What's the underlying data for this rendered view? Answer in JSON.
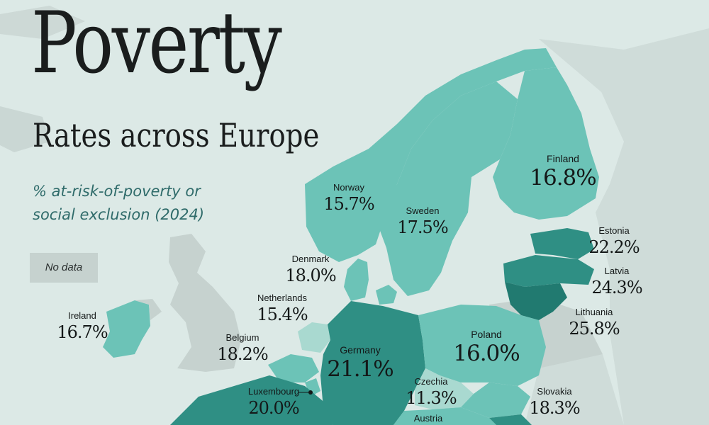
{
  "title": "Poverty",
  "subtitle": "Rates across Europe",
  "description": "% at-risk-of-poverty or social exclusion (2024)",
  "legend": {
    "no_data": "No data"
  },
  "colors": {
    "background": "#dce9e6",
    "no_data": "#c6d2cf",
    "low": "#a9d9d0",
    "mid": "#6cc3b7",
    "high": "#2f8f84",
    "very_high": "#217a70"
  },
  "countries": [
    {
      "name": "Norway",
      "value": "15.7%"
    },
    {
      "name": "Sweden",
      "value": "17.5%"
    },
    {
      "name": "Finland",
      "value": "16.8%"
    },
    {
      "name": "Estonia",
      "value": "22.2%"
    },
    {
      "name": "Latvia",
      "value": "24.3%"
    },
    {
      "name": "Lithuania",
      "value": "25.8%"
    },
    {
      "name": "Denmark",
      "value": "18.0%"
    },
    {
      "name": "Netherlands",
      "value": "15.4%"
    },
    {
      "name": "Ireland",
      "value": "16.7%"
    },
    {
      "name": "Belgium",
      "value": "18.2%"
    },
    {
      "name": "Germany",
      "value": "21.1%"
    },
    {
      "name": "Poland",
      "value": "16.0%"
    },
    {
      "name": "Luxembourg",
      "value": "20.0%"
    },
    {
      "name": "Czechia",
      "value": "11.3%"
    },
    {
      "name": "Slovakia",
      "value": "18.3%"
    },
    {
      "name": "Austria",
      "value": ""
    }
  ]
}
